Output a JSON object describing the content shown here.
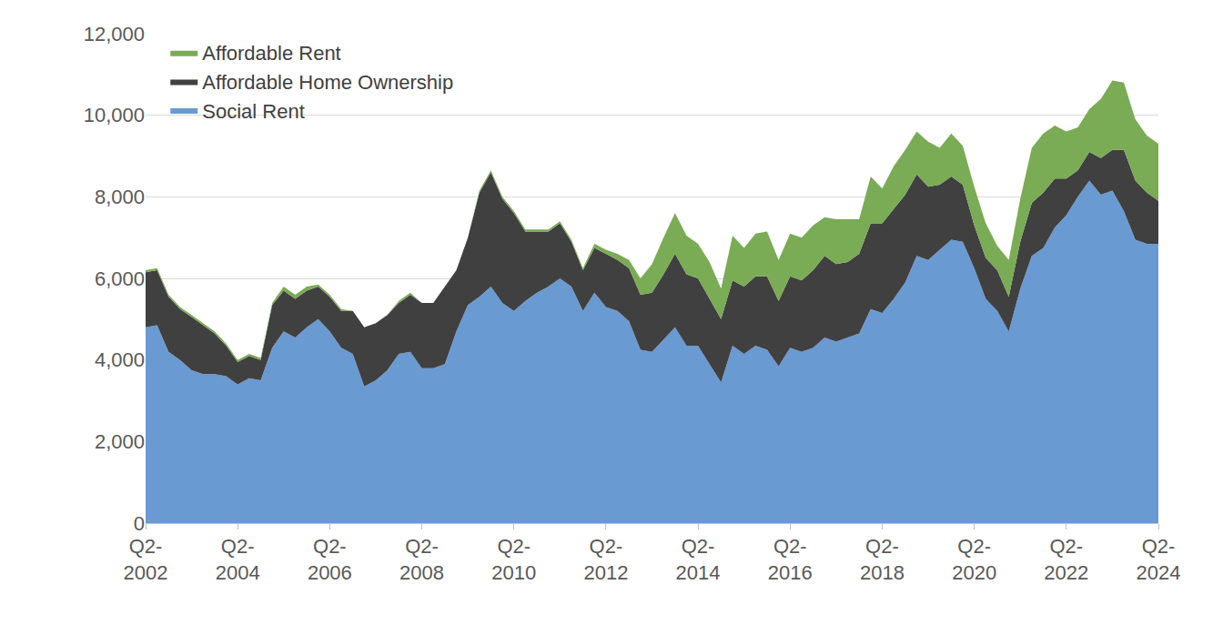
{
  "chart_data": {
    "type": "area",
    "stacked": true,
    "legend": "top-left",
    "grid": true,
    "categories": [
      "Q2-2002",
      null,
      null,
      null,
      null,
      null,
      null,
      null,
      "Q2-2004",
      null,
      null,
      null,
      null,
      null,
      null,
      null,
      "Q2-2006",
      null,
      null,
      null,
      null,
      null,
      null,
      null,
      "Q2-2008",
      null,
      null,
      null,
      null,
      null,
      null,
      null,
      "Q2-2010",
      null,
      null,
      null,
      null,
      null,
      null,
      null,
      "Q2-2012",
      null,
      null,
      null,
      null,
      null,
      null,
      null,
      "Q2-2014",
      null,
      null,
      null,
      null,
      null,
      null,
      null,
      "Q2-2016",
      null,
      null,
      null,
      null,
      null,
      null,
      null,
      "Q2-2018",
      null,
      null,
      null,
      null,
      null,
      null,
      null,
      "Q2-2020",
      null,
      null,
      null,
      null,
      null,
      null,
      null,
      "Q2-2022",
      null,
      null,
      null,
      null,
      null,
      null,
      null,
      "Q2-2024"
    ],
    "ylim": [
      0,
      12000
    ],
    "yticks": [
      0,
      {
        "value": 2000,
        "label": "2,000"
      },
      {
        "value": 4000,
        "label": "4,000"
      },
      {
        "value": 6000,
        "label": "6,000"
      },
      {
        "value": 8000,
        "label": "8,000"
      },
      {
        "value": 10000,
        "label": "10,000"
      },
      {
        "value": 12000,
        "label": "12,000"
      }
    ],
    "series": [
      {
        "name": "Social Rent",
        "color": "#6a9ad2",
        "values": [
          4800,
          4850,
          4200,
          4000,
          3750,
          3650,
          3650,
          3600,
          3400,
          3550,
          3500,
          4300,
          4700,
          4550,
          4800,
          5000,
          4700,
          4300,
          4150,
          3350,
          3500,
          3750,
          4150,
          4200,
          3800,
          3800,
          3900,
          4700,
          5350,
          5550,
          5800,
          5400,
          5200,
          5450,
          5650,
          5800,
          6000,
          5800,
          5200,
          5650,
          5300,
          5200,
          4950,
          4250,
          4200,
          4500,
          4800,
          4350,
          4350,
          3900,
          3450,
          4350,
          4150,
          4350,
          4250,
          3850,
          4300,
          4200,
          4300,
          4550,
          4450,
          4550,
          4650,
          5250,
          5150,
          5500,
          5900,
          6550,
          6450,
          6700,
          6950,
          6900,
          6250,
          5500,
          5200,
          4700,
          5750,
          6550,
          6750,
          7250,
          7550,
          8000,
          8400,
          8050,
          8150,
          7650,
          6950,
          6850,
          6850
        ]
      },
      {
        "name": "Affordable Home Ownership",
        "color": "#404040",
        "values": [
          1350,
          1350,
          1350,
          1250,
          1300,
          1200,
          1000,
          750,
          550,
          550,
          500,
          1050,
          1000,
          950,
          900,
          800,
          850,
          900,
          1050,
          1450,
          1400,
          1350,
          1250,
          1400,
          1600,
          1600,
          1900,
          1500,
          1650,
          2550,
          2800,
          2550,
          2400,
          1700,
          1500,
          1350,
          1350,
          1100,
          1000,
          1100,
          1300,
          1250,
          1300,
          1350,
          1450,
          1600,
          1800,
          1750,
          1650,
          1600,
          1550,
          1600,
          1650,
          1700,
          1800,
          1600,
          1750,
          1750,
          1900,
          2000,
          1900,
          1850,
          1950,
          2100,
          2200,
          2200,
          2150,
          2000,
          1800,
          1600,
          1550,
          1400,
          1050,
          1000,
          1000,
          850,
          1150,
          1300,
          1350,
          1200,
          900,
          650,
          700,
          900,
          1000,
          1500,
          1450,
          1250,
          1050
        ]
      },
      {
        "name": "Affordable Rent",
        "color": "#7aab55",
        "values": [
          50,
          50,
          50,
          50,
          50,
          50,
          50,
          50,
          50,
          50,
          50,
          50,
          100,
          100,
          100,
          50,
          50,
          50,
          0,
          0,
          0,
          0,
          50,
          50,
          0,
          0,
          0,
          0,
          0,
          50,
          50,
          50,
          50,
          50,
          50,
          50,
          50,
          50,
          50,
          100,
          100,
          150,
          200,
          400,
          700,
          900,
          1000,
          950,
          850,
          900,
          750,
          1100,
          950,
          1050,
          1100,
          1000,
          1050,
          1050,
          1100,
          950,
          1100,
          1050,
          850,
          1150,
          850,
          1050,
          1100,
          1050,
          1100,
          900,
          1050,
          950,
          950,
          850,
          600,
          900,
          1050,
          1350,
          1450,
          1300,
          1150,
          1050,
          1050,
          1450,
          1700,
          1650,
          1500,
          1400,
          1400
        ]
      }
    ]
  }
}
